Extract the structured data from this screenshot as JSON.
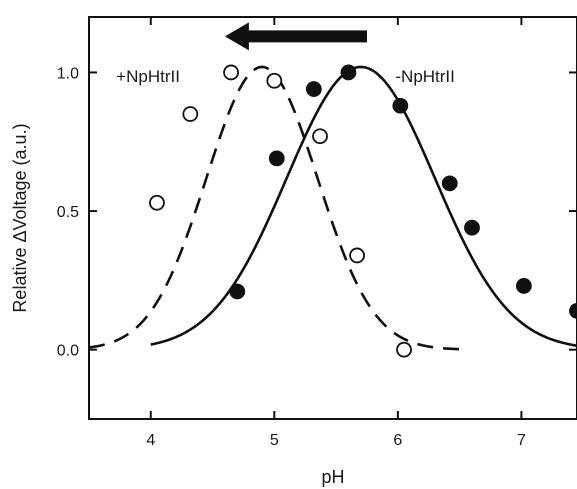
{
  "chart_data": {
    "type": "scatter",
    "title": "",
    "xlabel": "pH",
    "ylabel": "Relative ΔVoltage (a.u.)",
    "xlim": [
      3.5,
      7.45
    ],
    "ylim": [
      -0.25,
      1.2
    ],
    "x_ticks": [
      {
        "value": 4,
        "label": "4"
      },
      {
        "value": 5,
        "label": "5"
      },
      {
        "value": 6,
        "label": "6"
      },
      {
        "value": 7,
        "label": "7"
      }
    ],
    "y_ticks": [
      {
        "value": 0.0,
        "label": "0.0"
      },
      {
        "value": 0.5,
        "label": "0.5"
      },
      {
        "value": 1.0,
        "label": "1.0"
      }
    ],
    "grid": false,
    "arrow": {
      "from_x": 5.75,
      "to_x": 4.6,
      "y": 1.13,
      "direction": "left"
    },
    "series": [
      {
        "name": "+NpHtrII",
        "label_position": {
          "x": 3.72,
          "y": 0.965
        },
        "marker": "open-circle",
        "fit_line": "dashed",
        "color": "#111111",
        "points": [
          {
            "x": 4.05,
            "y": 0.53
          },
          {
            "x": 4.32,
            "y": 0.85
          },
          {
            "x": 4.65,
            "y": 1.0
          },
          {
            "x": 5.0,
            "y": 0.97
          },
          {
            "x": 5.37,
            "y": 0.77
          },
          {
            "x": 5.67,
            "y": 0.34
          },
          {
            "x": 6.05,
            "y": 0.0
          }
        ],
        "fit": {
          "center": 4.9,
          "height": 1.02,
          "sigma": 0.45,
          "x_start": 3.5,
          "x_end": 6.5
        }
      },
      {
        "name": "-NpHtrII",
        "label_position": {
          "x": 5.98,
          "y": 0.965
        },
        "marker": "filled-circle",
        "fit_line": "solid",
        "color": "#111111",
        "points": [
          {
            "x": 4.7,
            "y": 0.21
          },
          {
            "x": 5.02,
            "y": 0.69
          },
          {
            "x": 5.32,
            "y": 0.94
          },
          {
            "x": 5.6,
            "y": 1.0
          },
          {
            "x": 6.02,
            "y": 0.88
          },
          {
            "x": 6.42,
            "y": 0.6
          },
          {
            "x": 6.6,
            "y": 0.44
          },
          {
            "x": 7.02,
            "y": 0.23
          },
          {
            "x": 7.45,
            "y": 0.14
          }
        ],
        "fit": {
          "center": 5.7,
          "height": 1.02,
          "sigma": 0.6,
          "x_start": 4.0,
          "x_end": 7.45
        }
      }
    ]
  }
}
